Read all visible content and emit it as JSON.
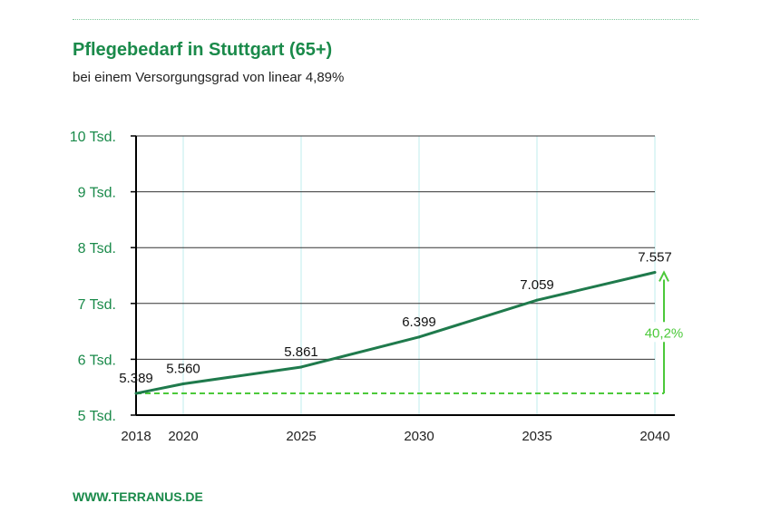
{
  "header": {
    "title": "Pflegebedarf in Stuttgart (65+)",
    "subtitle": "bei einem Versorgungsgrad von linear 4,89%"
  },
  "footer": {
    "website": "WWW.TERRANUS.DE"
  },
  "colors": {
    "brand": "#1a8a4a",
    "line": "#1f7a4c",
    "reference": "#4cc93a",
    "grid": "#333333",
    "vertical_grid": "#bfeeee"
  },
  "chart_data": {
    "type": "line",
    "title": "Pflegebedarf in Stuttgart (65+)",
    "subtitle": "bei einem Versorgungsgrad von linear 4,89%",
    "xlabel": "",
    "ylabel": "",
    "x": [
      2018,
      2020,
      2025,
      2030,
      2035,
      2040
    ],
    "x_tick_labels": [
      "2018",
      "2020",
      "2025",
      "2030",
      "2035",
      "2040"
    ],
    "values": [
      5389,
      5560,
      5861,
      6399,
      7059,
      7557
    ],
    "data_labels": [
      "5.389",
      "5.560",
      "5.861",
      "6.399",
      "7.059",
      "7.557"
    ],
    "ylim": [
      5000,
      10000
    ],
    "y_ticks": [
      5000,
      6000,
      7000,
      8000,
      9000,
      10000
    ],
    "y_tick_labels": [
      "5 Tsd.",
      "6 Tsd.",
      "7 Tsd.",
      "8 Tsd.",
      "9 Tsd.",
      "10 Tsd."
    ],
    "grid": true,
    "annotations": [
      {
        "type": "growth-arrow",
        "from": 5389,
        "to": 7557,
        "at_x": 2040,
        "label": "40,2%"
      }
    ]
  }
}
